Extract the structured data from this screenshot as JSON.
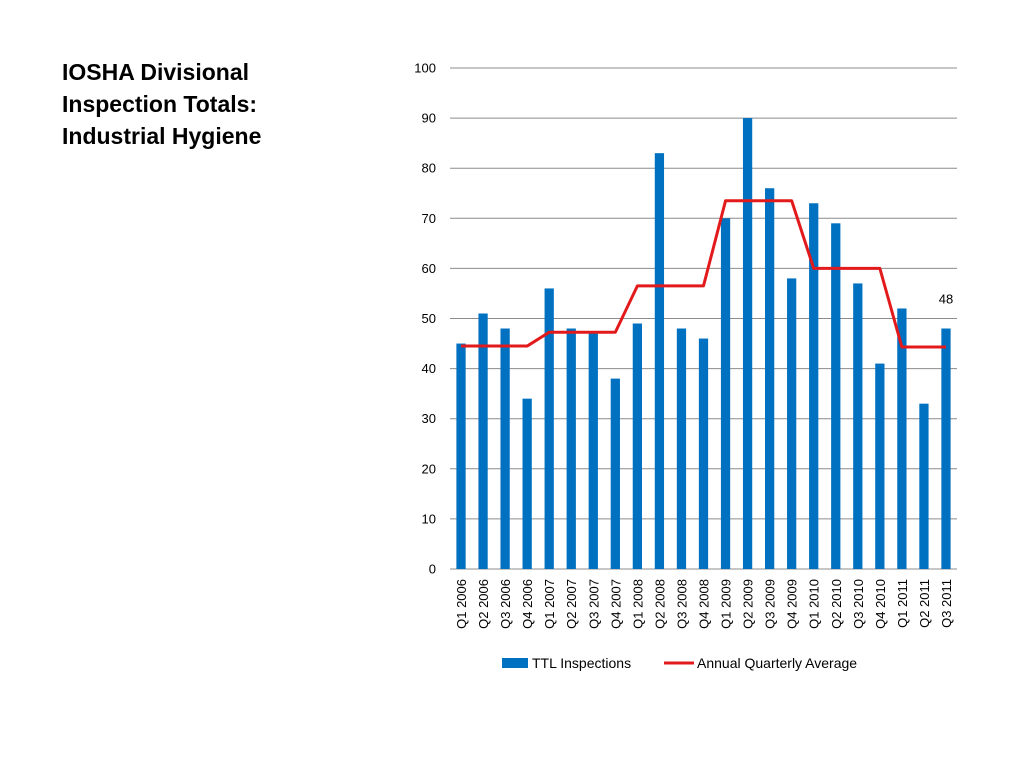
{
  "slide": {
    "title_lines": [
      "IOSHA Divisional",
      "Inspection Totals:",
      "Industrial Hygiene"
    ]
  },
  "colors": {
    "bar": "#0070C0",
    "line": "#E31A1C",
    "grid": "#8C8C8C"
  },
  "chart_data": {
    "type": "bar",
    "title": "IOSHA Divisional Inspection Totals: Industrial Hygiene",
    "categories": [
      "Q1 2006",
      "Q2 2006",
      "Q3 2006",
      "Q4 2006",
      "Q1 2007",
      "Q2 2007",
      "Q3 2007",
      "Q4 2007",
      "Q1 2008",
      "Q2 2008",
      "Q3 2008",
      "Q4 2008",
      "Q1 2009",
      "Q2 2009",
      "Q3 2009",
      "Q4 2009",
      "Q1 2010",
      "Q2 2010",
      "Q3 2010",
      "Q4 2010",
      "Q1 2011",
      "Q2 2011",
      "Q3 2011"
    ],
    "series": [
      {
        "name": "TTL Inspections",
        "type": "bar",
        "values": [
          45,
          51,
          48,
          34,
          56,
          48,
          47,
          38,
          49,
          83,
          48,
          46,
          70,
          90,
          76,
          58,
          73,
          69,
          57,
          41,
          52,
          33,
          48
        ]
      },
      {
        "name": "Annual Quarterly Average",
        "type": "line",
        "values": [
          44.5,
          44.5,
          44.5,
          44.5,
          47.25,
          47.25,
          47.25,
          47.25,
          56.5,
          56.5,
          56.5,
          56.5,
          73.5,
          73.5,
          73.5,
          73.5,
          60,
          60,
          60,
          60,
          44.3,
          44.3,
          44.3
        ]
      }
    ],
    "data_labels": [
      {
        "category": "Q3 2011",
        "text": "48"
      }
    ],
    "ylim": [
      0,
      100
    ],
    "yticks": [
      0,
      10,
      20,
      30,
      40,
      50,
      60,
      70,
      80,
      90,
      100
    ],
    "grid": true,
    "legend_position": "bottom",
    "xlabel": "",
    "ylabel": ""
  }
}
